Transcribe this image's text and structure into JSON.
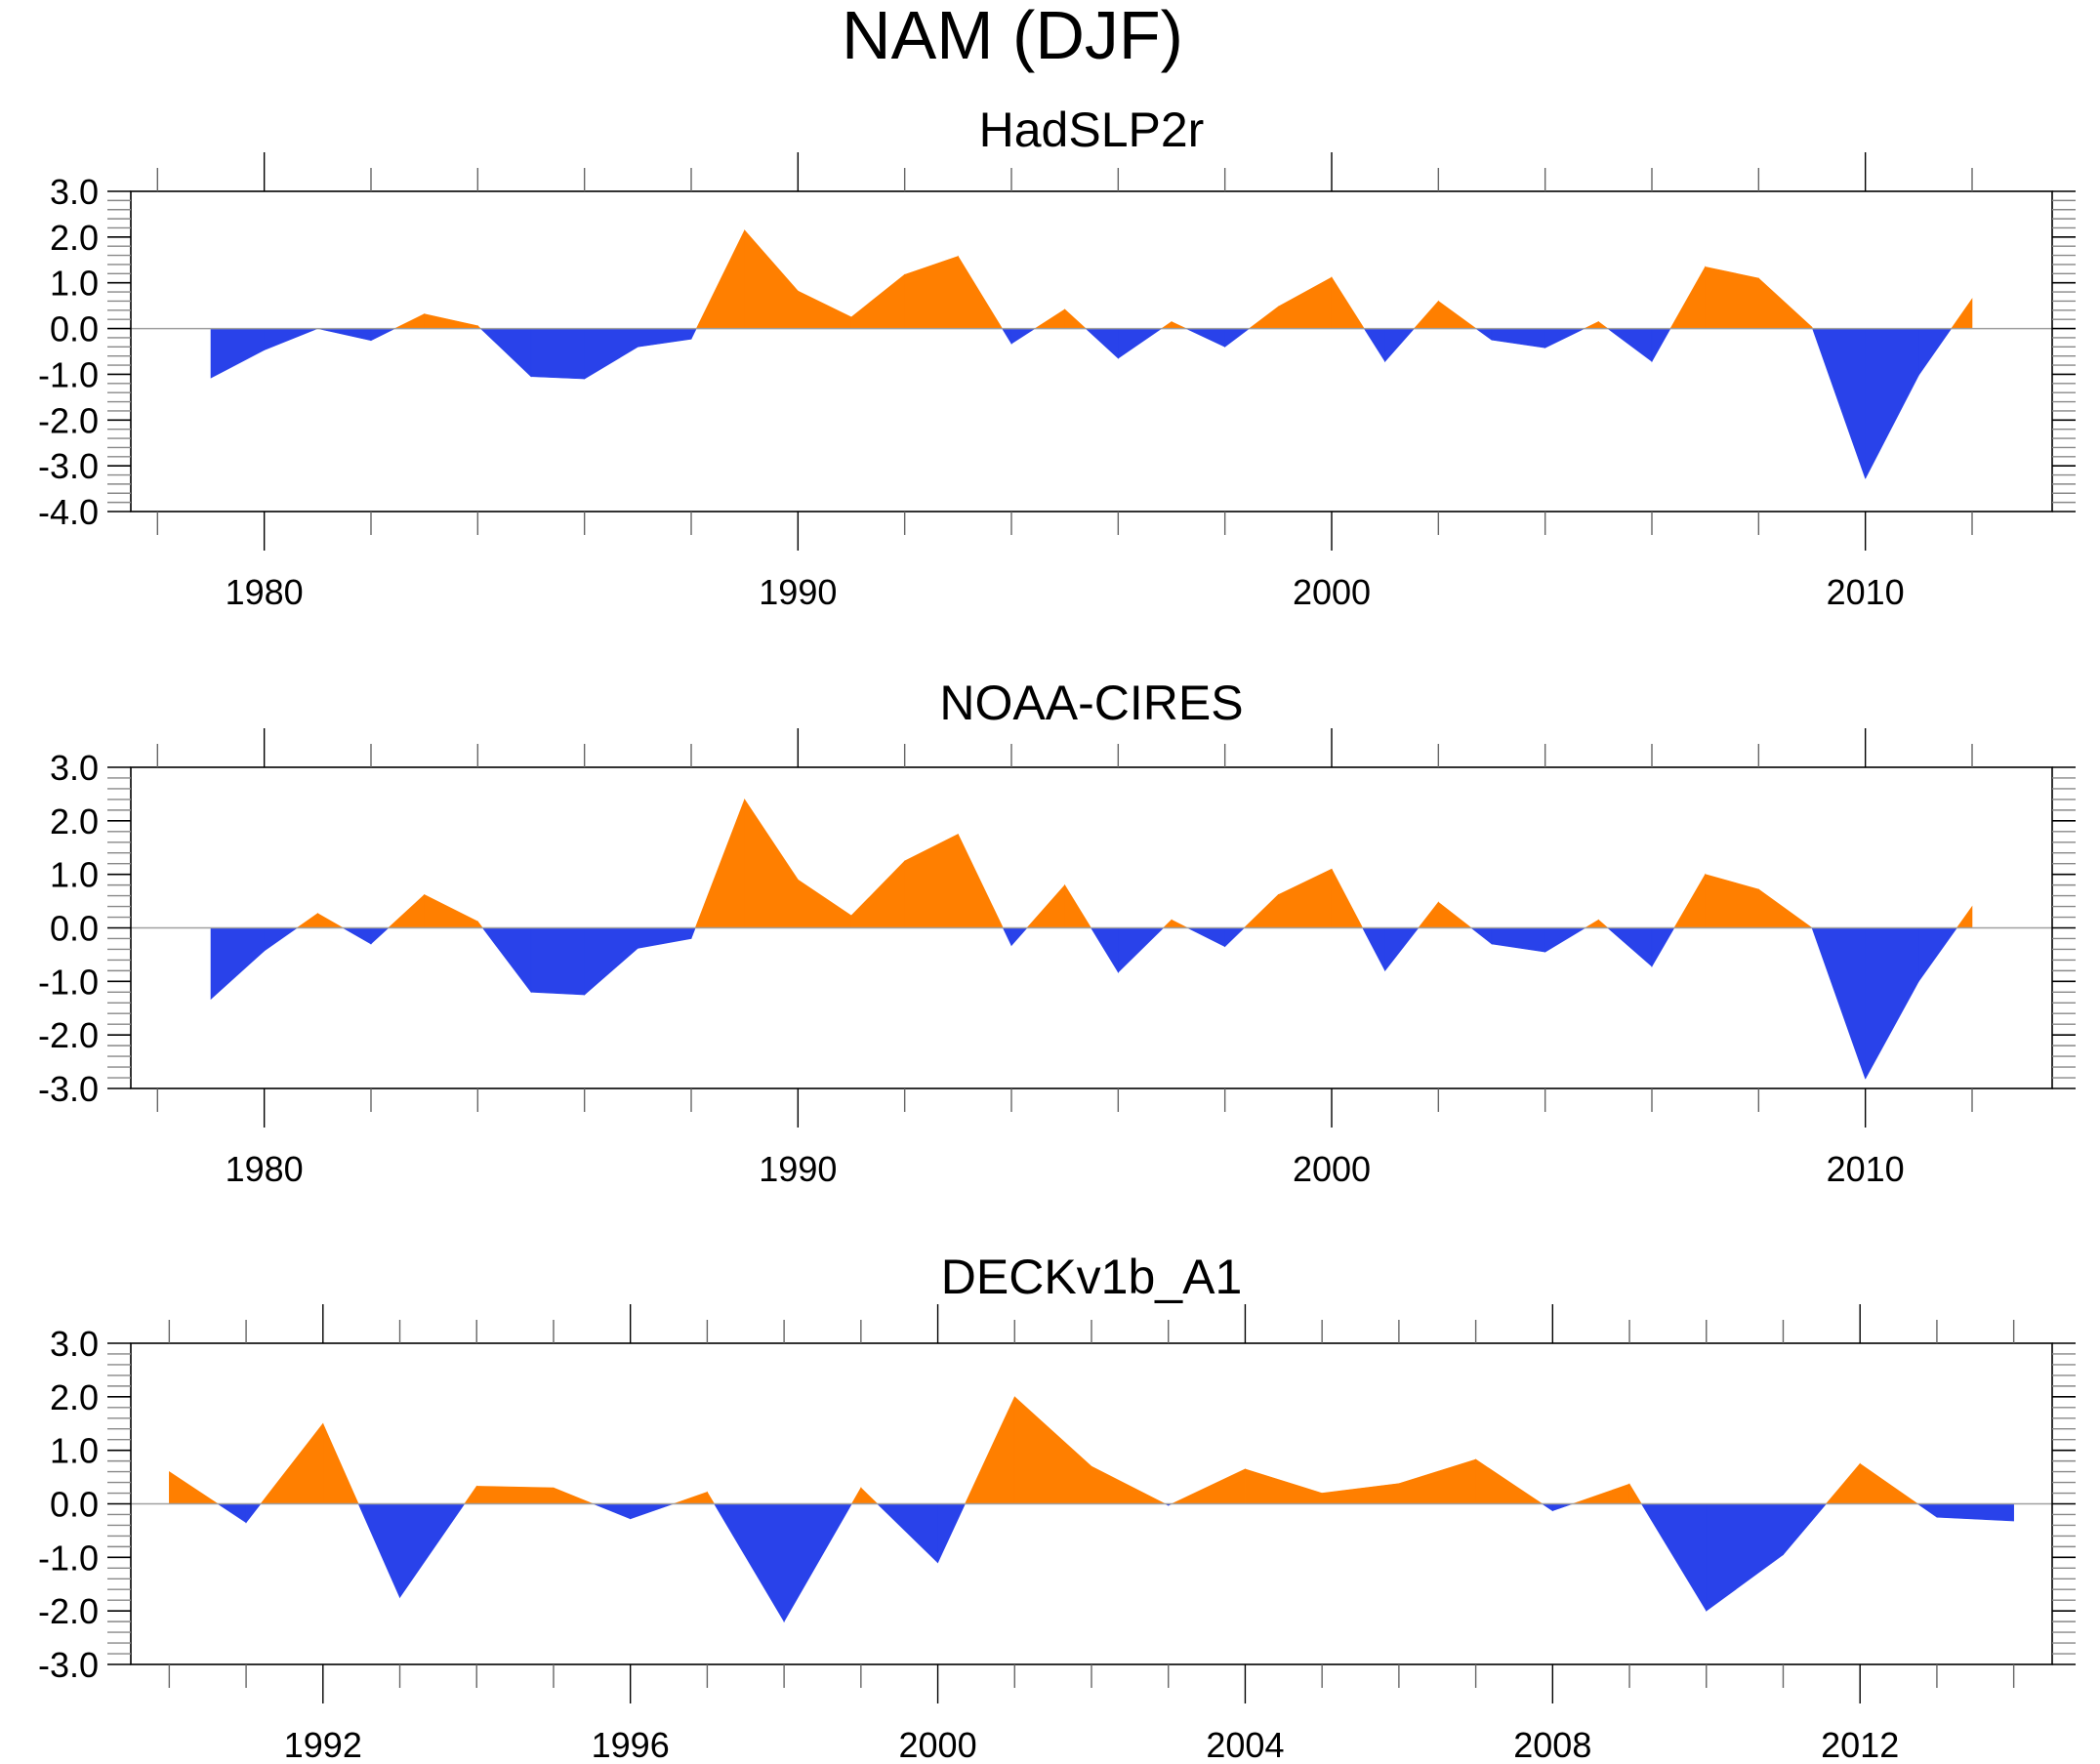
{
  "figure_title": "NAM (DJF)",
  "colors": {
    "positive": "#ff7f00",
    "negative": "#2942ea",
    "axis": "#000000",
    "zero_line": "#a0a0a0"
  },
  "chart_data": [
    {
      "type": "area",
      "title": "HadSLP2r",
      "xlabel": "",
      "ylabel": "",
      "ylim": [
        -4.0,
        3.0
      ],
      "yticks": [
        3.0,
        2.0,
        1.0,
        0.0,
        -1.0,
        -2.0,
        -3.0,
        -4.0
      ],
      "ytick_labels": [
        "3.0",
        "2.0",
        "1.0",
        "0.0",
        "-1.0",
        "-2.0",
        "-3.0",
        "-4.0"
      ],
      "xlim": [
        1977.5,
        2013.5
      ],
      "xticks_major": [
        1980,
        1990,
        2000,
        2010
      ],
      "xtick_labels": [
        "1980",
        "1990",
        "2000",
        "2010"
      ],
      "x_minor_step": 2,
      "grid": false,
      "x": [
        1979,
        1980,
        1981,
        1982,
        1983,
        1984,
        1985,
        1986,
        1987,
        1988,
        1989,
        1990,
        1991,
        1992,
        1993,
        1994,
        1995,
        1996,
        1997,
        1998,
        1999,
        2000,
        2001,
        2002,
        2003,
        2004,
        2005,
        2006,
        2007,
        2008,
        2009,
        2010,
        2011,
        2012
      ],
      "values": [
        -1.08,
        -0.47,
        0.0,
        -0.26,
        0.32,
        0.06,
        -1.05,
        -1.1,
        -0.4,
        -0.23,
        2.15,
        0.82,
        0.25,
        1.18,
        1.58,
        -0.33,
        0.42,
        -0.65,
        0.15,
        -0.4,
        0.48,
        1.12,
        -0.72,
        0.6,
        -0.25,
        -0.42,
        0.15,
        -0.72,
        1.35,
        1.1,
        0.03,
        -3.28,
        -1.02,
        0.65
      ]
    },
    {
      "type": "area",
      "title": "NOAA-CIRES",
      "xlabel": "",
      "ylabel": "",
      "ylim": [
        -3.0,
        3.0
      ],
      "yticks": [
        3.0,
        2.0,
        1.0,
        0.0,
        -1.0,
        -2.0,
        -3.0
      ],
      "ytick_labels": [
        "3.0",
        "2.0",
        "1.0",
        "0.0",
        "-1.0",
        "-2.0",
        "-3.0"
      ],
      "xlim": [
        1977.5,
        2013.5
      ],
      "xticks_major": [
        1980,
        1990,
        2000,
        2010
      ],
      "xtick_labels": [
        "1980",
        "1990",
        "2000",
        "2010"
      ],
      "x_minor_step": 2,
      "grid": false,
      "x": [
        1979,
        1980,
        1981,
        1982,
        1983,
        1984,
        1985,
        1986,
        1987,
        1988,
        1989,
        1990,
        1991,
        1992,
        1993,
        1994,
        1995,
        1996,
        1997,
        1998,
        1999,
        2000,
        2001,
        2002,
        2003,
        2004,
        2005,
        2006,
        2007,
        2008,
        2009,
        2010,
        2011,
        2012
      ],
      "values": [
        -1.33,
        -0.43,
        0.27,
        -0.3,
        0.62,
        0.12,
        -1.2,
        -1.25,
        -0.38,
        -0.2,
        2.4,
        0.9,
        0.23,
        1.25,
        1.75,
        -0.33,
        0.8,
        -0.83,
        0.15,
        -0.35,
        0.62,
        1.1,
        -0.8,
        0.48,
        -0.3,
        -0.45,
        0.15,
        -0.72,
        1.0,
        0.72,
        0.0,
        -2.82,
        -1.0,
        0.4
      ]
    },
    {
      "type": "area",
      "title": "DECKv1b_A1",
      "xlabel": "",
      "ylabel": "",
      "ylim": [
        -3.0,
        3.0
      ],
      "yticks": [
        3.0,
        2.0,
        1.0,
        0.0,
        -1.0,
        -2.0,
        -3.0
      ],
      "ytick_labels": [
        "3.0",
        "2.0",
        "1.0",
        "0.0",
        "-1.0",
        "-2.0",
        "-3.0"
      ],
      "xlim": [
        1989.5,
        2014.5
      ],
      "xticks_major": [
        1992,
        1996,
        2000,
        2004,
        2008,
        2012
      ],
      "xtick_labels": [
        "1992",
        "1996",
        "2000",
        "2004",
        "2008",
        "2012"
      ],
      "x_minor_step": 1,
      "grid": false,
      "x": [
        1990,
        1991,
        1992,
        1993,
        1994,
        1995,
        1996,
        1997,
        1998,
        1999,
        2000,
        2001,
        2002,
        2003,
        2004,
        2005,
        2006,
        2007,
        2008,
        2009,
        2010,
        2011,
        2012,
        2013,
        2014
      ],
      "values": [
        0.6,
        -0.35,
        1.5,
        -1.75,
        0.33,
        0.3,
        -0.28,
        0.22,
        -2.2,
        0.3,
        -1.1,
        2.0,
        0.7,
        -0.03,
        0.65,
        0.2,
        0.38,
        0.83,
        -0.13,
        0.37,
        -2.0,
        -0.95,
        0.75,
        -0.25,
        -0.32
      ]
    }
  ]
}
